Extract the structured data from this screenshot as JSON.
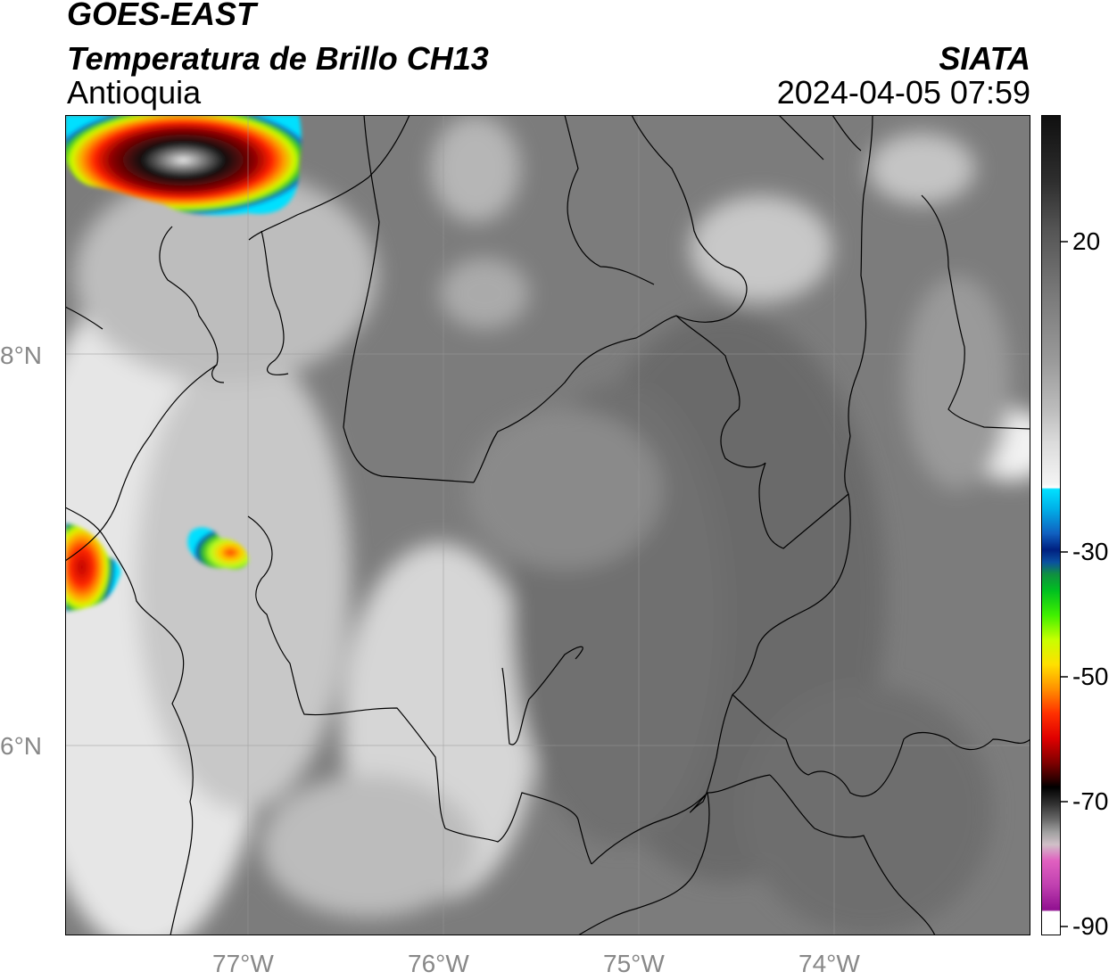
{
  "header": {
    "satellite": "GOES-EAST",
    "product": "Temperatura de Brillo CH13",
    "region": "Antioquia",
    "agency": "SIATA",
    "timestamp": "2024-04-05 07:59"
  },
  "axes": {
    "lon_labels": [
      "77°W",
      "76°W",
      "75°W",
      "74°W"
    ],
    "lat_labels": [
      "8°N",
      "6°N"
    ]
  },
  "colorbar": {
    "tick_labels": [
      "20",
      "-30",
      "-50",
      "-70",
      "-90"
    ]
  },
  "colors": {
    "cloud_gray": "#7a7a7a",
    "land_gray": "#676767",
    "boundary": "#000000",
    "grid": "#999999"
  }
}
